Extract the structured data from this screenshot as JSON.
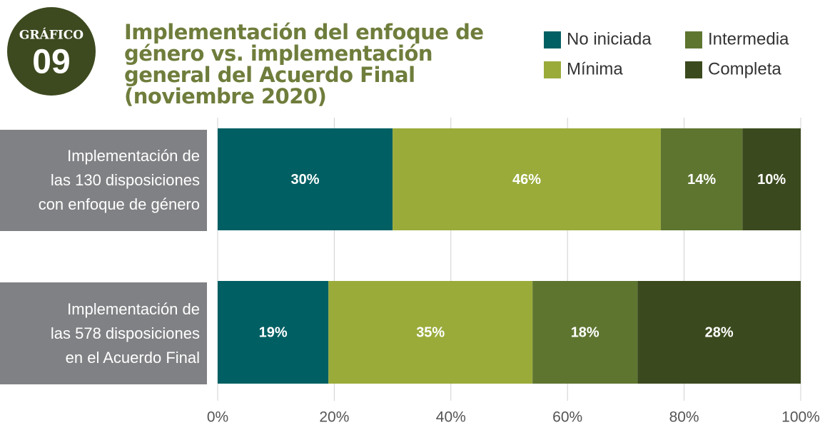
{
  "chart_data": {
    "type": "stacked_barh",
    "badge": {
      "label": "GRÁFICO",
      "number": "09"
    },
    "title": "Implementación del enfoque de género vs. implementación general del Acuerdo Final (noviembre 2020)",
    "categories": [
      "Implementación de\nlas 130 disposiciones\ncon enfoque de género",
      "Implementación de\nlas 578 disposiciones\nen el Acuerdo Final"
    ],
    "series": [
      {
        "name": "No iniciada",
        "color": "#005f63",
        "values": [
          30,
          19
        ],
        "value_labels": [
          "30%",
          "19%"
        ]
      },
      {
        "name": "Mínima",
        "color": "#9aab3a",
        "values": [
          46,
          35
        ],
        "value_labels": [
          "46%",
          "35%"
        ]
      },
      {
        "name": "Intermedia",
        "color": "#5e7530",
        "values": [
          14,
          18
        ],
        "value_labels": [
          "14%",
          "18%"
        ]
      },
      {
        "name": "Completa",
        "color": "#3b4a1e",
        "values": [
          10,
          28
        ],
        "value_labels": [
          "10%",
          "28%"
        ]
      }
    ],
    "xlim": [
      0,
      100
    ],
    "xticks": [
      {
        "value": 0,
        "label": "0%"
      },
      {
        "value": 20,
        "label": "20%"
      },
      {
        "value": 40,
        "label": "40%"
      },
      {
        "value": 60,
        "label": "60%"
      },
      {
        "value": 80,
        "label": "80%"
      },
      {
        "value": 100,
        "label": "100%"
      }
    ],
    "grid": true
  }
}
